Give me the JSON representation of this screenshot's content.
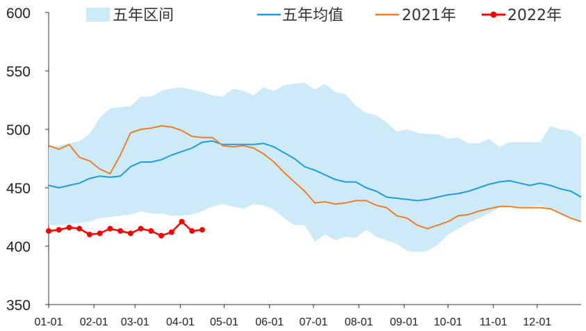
{
  "chart_data": {
    "type": "line",
    "title": "",
    "xlabel": "",
    "ylabel": "",
    "ylim": [
      350,
      600
    ],
    "yticks": [
      350,
      400,
      450,
      500,
      550,
      600
    ],
    "x_range_weeks": [
      0,
      52
    ],
    "xtick_labels": [
      "01-01",
      "02-01",
      "03-01",
      "04-01",
      "05-01",
      "06-01",
      "07-01",
      "08-01",
      "09-01",
      "10-01",
      "11-01",
      "12-01"
    ],
    "xtick_weeks": [
      0,
      4.43,
      8.43,
      12.86,
      17.14,
      21.57,
      25.86,
      30.29,
      34.71,
      39,
      43.43,
      47.71
    ],
    "legend": [
      {
        "label": "五年区间",
        "kind": "band",
        "color": "#cdeaf9"
      },
      {
        "label": "五年均值",
        "kind": "line",
        "color": "#1c9be8"
      },
      {
        "label": "2021年",
        "kind": "line",
        "color": "#f47b20"
      },
      {
        "label": "2022年",
        "kind": "line-marker",
        "color": "#ff0000"
      }
    ],
    "legend_position": "top",
    "grid": false,
    "band": {
      "name": "五年区间",
      "color": "#cdeaf9",
      "x": [
        0,
        1,
        2,
        3,
        4,
        5,
        6,
        7,
        8,
        9,
        10,
        11,
        12,
        13,
        14,
        15,
        16,
        17,
        18,
        19,
        20,
        21,
        22,
        23,
        24,
        25,
        26,
        27,
        28,
        29,
        30,
        31,
        32,
        33,
        34,
        35,
        36,
        37,
        38,
        39,
        40,
        41,
        42,
        43,
        44,
        45,
        46,
        47,
        48,
        49,
        50,
        51,
        52
      ],
      "upper": [
        484,
        486,
        488,
        490,
        496,
        510,
        518,
        519,
        520,
        528,
        528,
        533,
        535,
        536,
        534,
        532,
        529,
        528,
        535,
        533,
        529,
        536,
        533,
        538,
        539,
        540,
        534,
        539,
        532,
        530,
        520,
        514,
        512,
        506,
        498,
        500,
        497,
        496,
        496,
        492,
        493,
        488,
        488,
        492,
        485,
        489,
        489,
        489,
        489,
        503,
        500,
        499,
        493
      ],
      "lower": [
        418,
        418,
        419,
        420,
        421,
        424,
        425,
        426,
        427,
        430,
        428,
        428,
        426,
        426,
        427,
        430,
        434,
        436,
        434,
        432,
        436,
        435,
        431,
        424,
        418,
        418,
        404,
        410,
        405,
        408,
        407,
        414,
        408,
        405,
        402,
        396,
        395,
        396,
        401,
        410,
        415,
        420,
        424,
        428,
        433,
        435,
        434,
        434,
        435,
        432,
        428,
        425,
        421
      ]
    },
    "series": [
      {
        "name": "五年均值",
        "color": "#1c9be8",
        "x": [
          0,
          1,
          2,
          3,
          4,
          5,
          6,
          7,
          8,
          9,
          10,
          11,
          12,
          13,
          14,
          15,
          16,
          17,
          18,
          19,
          20,
          21,
          22,
          23,
          24,
          25,
          26,
          27,
          28,
          29,
          30,
          31,
          32,
          33,
          34,
          35,
          36,
          37,
          38,
          39,
          40,
          41,
          42,
          43,
          44,
          45,
          46,
          47,
          48,
          49,
          50,
          51,
          52
        ],
        "values": [
          452,
          450,
          452,
          454,
          458,
          460,
          459,
          460,
          468,
          472,
          472,
          474,
          478,
          481,
          484,
          489,
          490,
          487,
          487,
          487,
          487,
          488,
          485,
          480,
          475,
          468,
          465,
          461,
          457,
          455,
          455,
          450,
          447,
          442,
          441,
          440,
          439,
          440,
          442,
          444,
          445,
          447,
          450,
          453,
          455,
          456,
          454,
          452,
          454,
          452,
          449,
          447,
          442
        ]
      },
      {
        "name": "2021年",
        "color": "#f47b20",
        "x": [
          0,
          1,
          2,
          3,
          4,
          5,
          6,
          7,
          8,
          9,
          10,
          11,
          12,
          13,
          14,
          15,
          16,
          17,
          18,
          19,
          20,
          21,
          22,
          23,
          24,
          25,
          26,
          27,
          28,
          29,
          30,
          31,
          32,
          33,
          34,
          35,
          36,
          37,
          38,
          39,
          40,
          41,
          42,
          43,
          44,
          45,
          46,
          47,
          48,
          49,
          50,
          51,
          52
        ],
        "values": [
          486,
          483,
          487,
          476,
          473,
          466,
          462,
          478,
          497,
          500,
          501,
          503,
          502,
          499,
          494,
          493,
          493,
          486,
          485,
          486,
          484,
          479,
          472,
          463,
          455,
          447,
          437,
          438,
          436,
          437,
          439,
          439,
          435,
          433,
          426,
          424,
          418,
          415,
          418,
          421,
          426,
          427,
          430,
          432,
          434,
          434,
          433,
          433,
          433,
          432,
          428,
          424,
          421
        ]
      },
      {
        "name": "2022年",
        "color": "#ff0000",
        "marker": "circle",
        "x": [
          0,
          1,
          2,
          3,
          4,
          5,
          6,
          7,
          8,
          9,
          10,
          11,
          12,
          13,
          14,
          15
        ],
        "values": [
          413,
          414,
          416,
          415,
          410,
          411,
          415,
          413,
          411,
          415,
          413,
          409,
          412,
          421,
          413,
          414
        ]
      }
    ]
  }
}
